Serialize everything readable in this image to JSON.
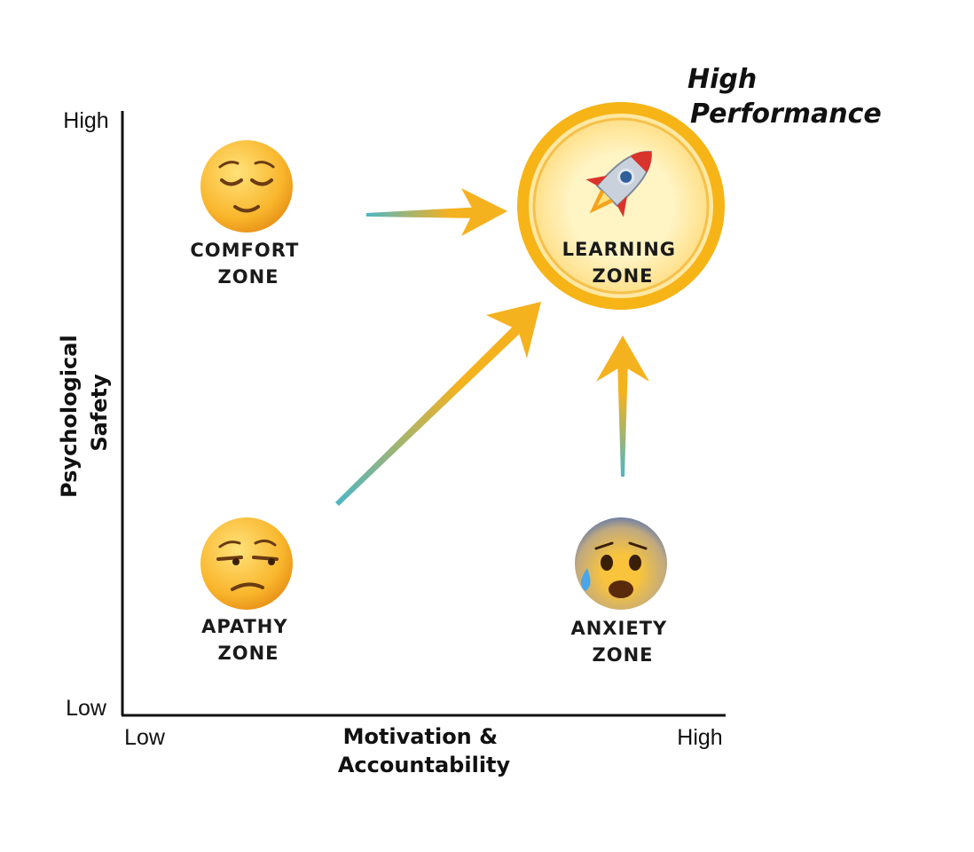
{
  "title": [
    "High",
    "Performance"
  ],
  "y_axis": {
    "label": [
      "Psychological",
      "Safety"
    ],
    "high": "High",
    "low": "Low"
  },
  "x_axis": {
    "label": [
      "Motivation &",
      "Accountability"
    ],
    "low": "Low",
    "high": "High"
  },
  "zones": [
    {
      "label": [
        "COMFORT",
        "ZONE"
      ]
    },
    {
      "label": [
        "LEARNING",
        "ZONE"
      ]
    },
    {
      "label": [
        "APATHY",
        "ZONE"
      ]
    },
    {
      "label": [
        "ANXIETY",
        "ZONE"
      ]
    }
  ]
}
